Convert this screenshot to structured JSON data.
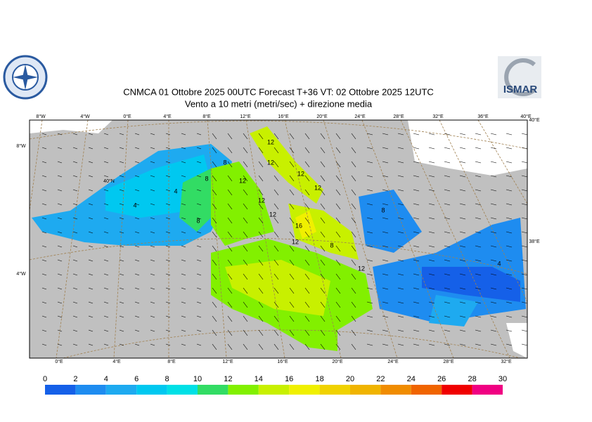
{
  "header": {
    "title": "CNMCA 01  Ottobre  2025 00UTC Forecast T+36 VT: 02  Ottobre  2025 12UTC",
    "subtitle": "Vento a 10 metri (metri/sec) + direzione media",
    "logo_right": "ISMAR"
  },
  "map": {
    "top_labels": [
      "8°W",
      "4°W",
      "0°E",
      "4°E",
      "8°E",
      "12°E",
      "16°E",
      "20°E",
      "24°E",
      "28°E",
      "32°E",
      "36°E",
      "40°E"
    ],
    "bottom_labels": [
      "0°E",
      "4°E",
      "8°E",
      "12°E",
      "16°E",
      "20°E",
      "24°E",
      "28°E",
      "32°E"
    ],
    "left_labels": [
      "8°W",
      "4°W"
    ],
    "right_labels": [
      "40°E",
      "38°E"
    ],
    "inner_labels": [
      "40°N"
    ],
    "contour_labels": [
      "12",
      "12",
      "12",
      "12",
      "12",
      "12",
      "12",
      "8",
      "8",
      "4",
      "8",
      "12",
      "4",
      "8",
      "16",
      "12",
      "8",
      "4"
    ]
  },
  "colorbar": {
    "ticks": [
      0,
      2,
      4,
      6,
      8,
      10,
      12,
      14,
      16,
      18,
      20,
      22,
      24,
      26,
      28,
      30
    ],
    "colors": [
      "#1560e8",
      "#1e8cf0",
      "#1eaaf0",
      "#00c8f0",
      "#00e0e6",
      "#32dc64",
      "#82f000",
      "#c8f000",
      "#f0f000",
      "#f0d200",
      "#f0b400",
      "#f08c00",
      "#f06400",
      "#f00000",
      "#f00082"
    ]
  }
}
